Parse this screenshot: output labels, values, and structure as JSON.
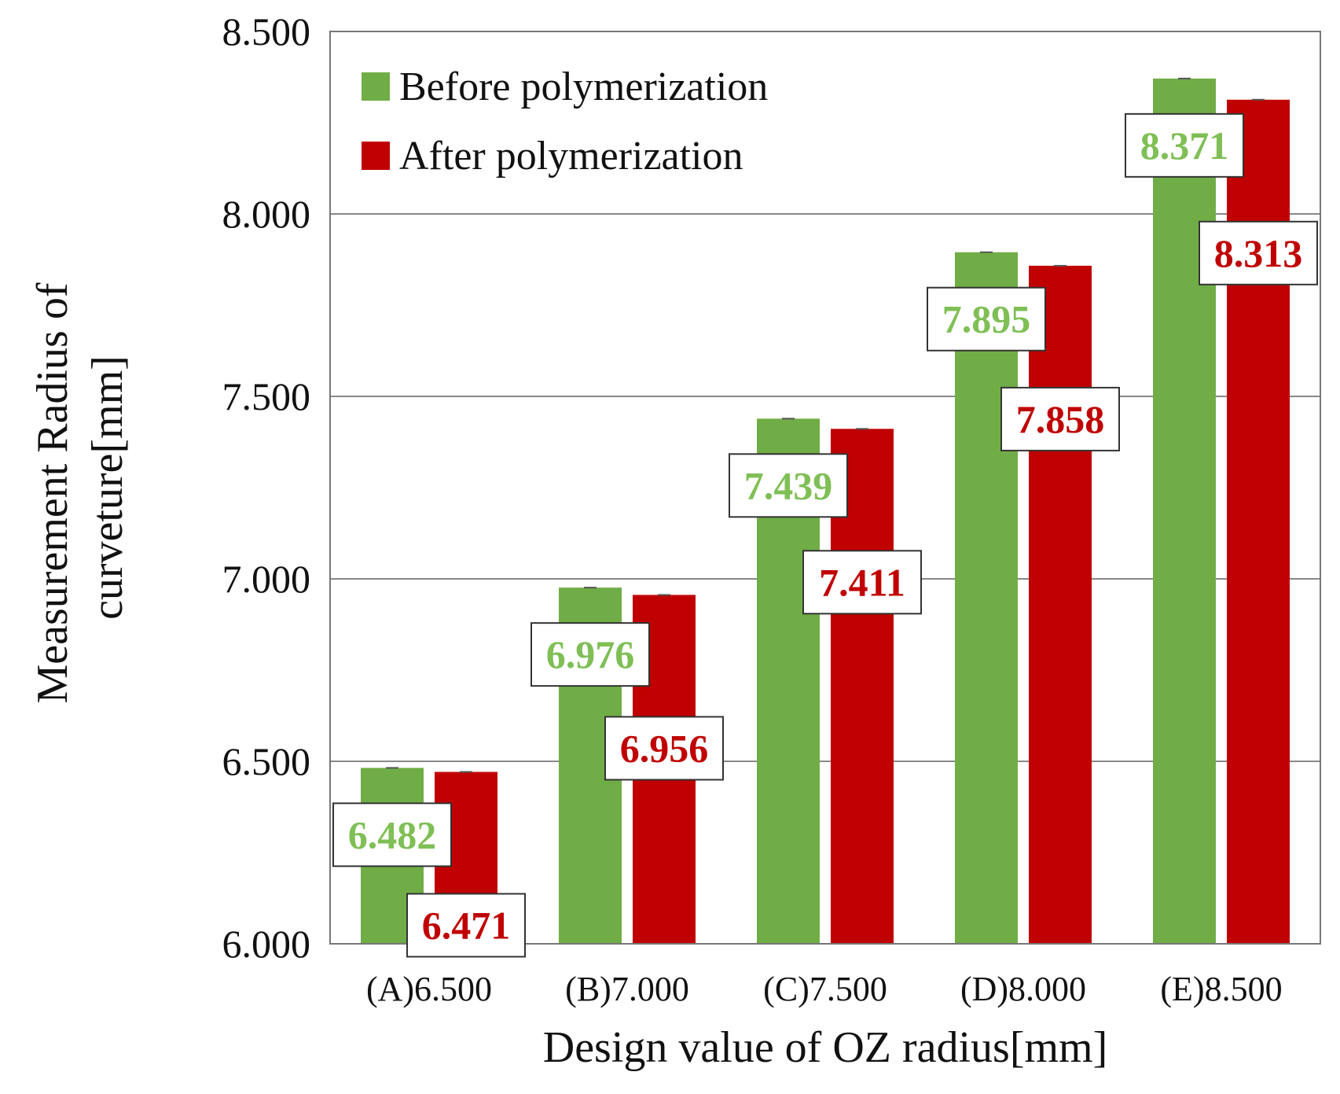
{
  "chart_data": {
    "type": "bar",
    "title": "",
    "xlabel": "Design value of OZ radius[mm]",
    "ylabel_lines": [
      "Measurement Radius of",
      "curveture[mm]"
    ],
    "ylim": [
      6.0,
      8.5
    ],
    "yticks": [
      6.0,
      6.5,
      7.0,
      7.5,
      8.0,
      8.5
    ],
    "ytick_labels": [
      "6.000",
      "6.500",
      "7.000",
      "7.500",
      "8.000",
      "8.500"
    ],
    "grid": true,
    "legend_position": "top-left",
    "categories": [
      "(A)6.500",
      "(B)7.000",
      "(C)7.500",
      "(D)8.000",
      "(E)8.500"
    ],
    "series": [
      {
        "name": "Before polymerization",
        "color": "#70ad47",
        "label_color": "#7fbf55",
        "values": [
          6.482,
          6.976,
          7.439,
          7.895,
          8.371
        ],
        "labels": [
          "6.482",
          "6.976",
          "7.439",
          "7.895",
          "8.371"
        ]
      },
      {
        "name": "After polymerization",
        "color": "#c00000",
        "label_color": "#c00000",
        "values": [
          6.471,
          6.956,
          7.411,
          7.858,
          8.313
        ],
        "labels": [
          "6.471",
          "6.956",
          "7.411",
          "7.858",
          "8.313"
        ]
      }
    ]
  }
}
